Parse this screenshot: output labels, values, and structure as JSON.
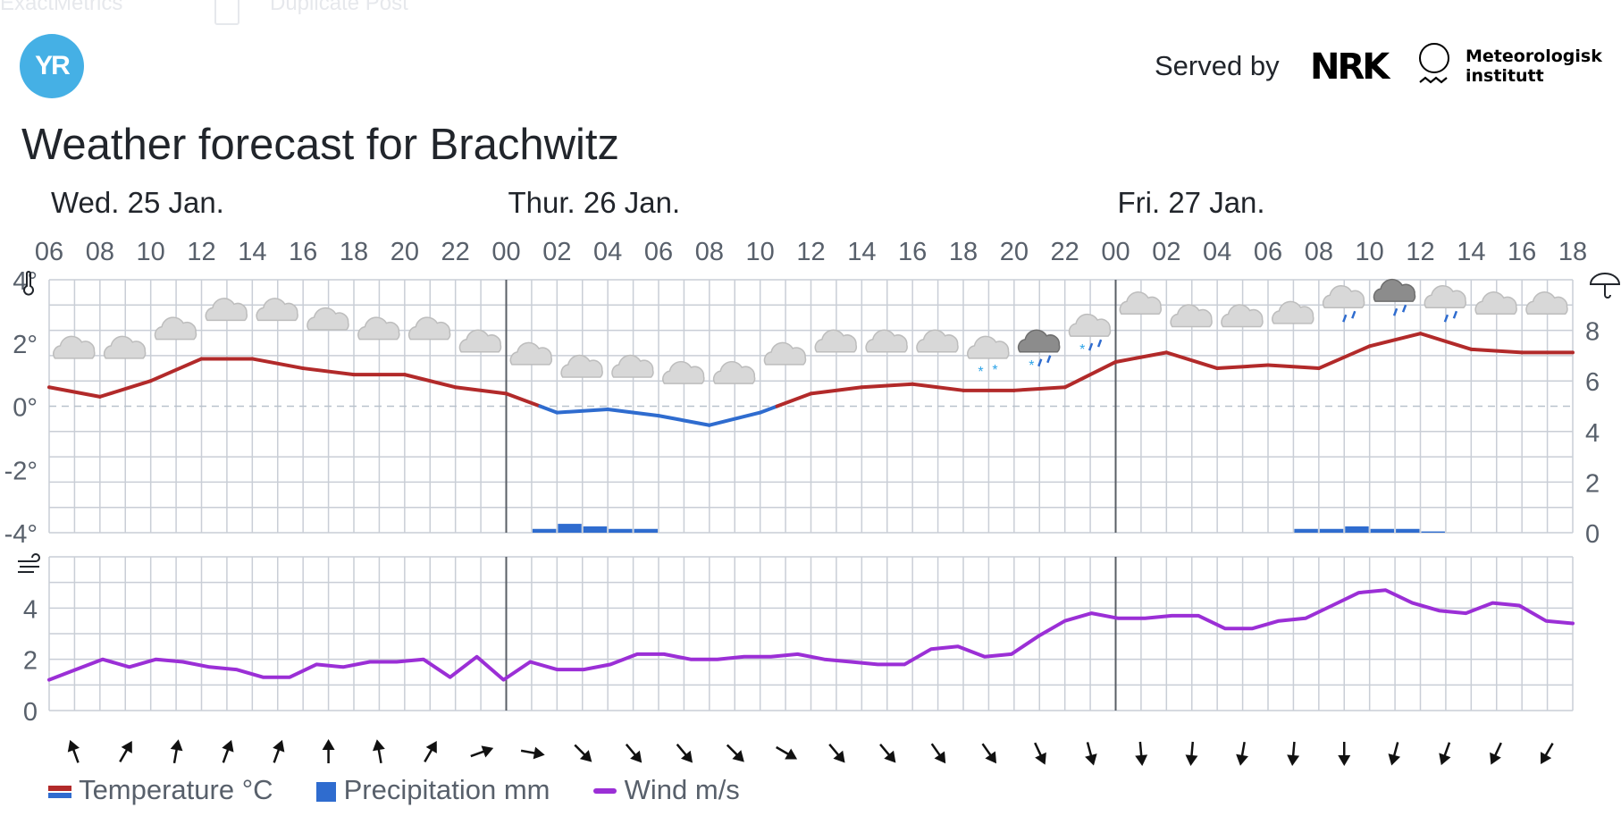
{
  "header": {
    "ghost_left": "ExactMetrics",
    "ghost_right": "Duplicate Post",
    "logo_text": "YR",
    "served_by": "Served by",
    "nrk_logo": "NRK",
    "met_line1": "Meteorologisk",
    "met_line2": "institutt",
    "title": "Weather forecast for Brachwitz"
  },
  "chart_data": {
    "type": "line",
    "days": [
      {
        "label": "Wed. 25 Jan.",
        "start_index": 0
      },
      {
        "label": "Thur. 26 Jan.",
        "start_index": 9
      },
      {
        "label": "Fri. 27 Jan.",
        "start_index": 21
      }
    ],
    "x_hours": [
      "06",
      "08",
      "10",
      "12",
      "14",
      "16",
      "18",
      "20",
      "22",
      "00",
      "02",
      "04",
      "06",
      "08",
      "10",
      "12",
      "14",
      "16",
      "18",
      "20",
      "22",
      "00",
      "02",
      "04",
      "06",
      "08",
      "10",
      "12",
      "14",
      "16",
      "18"
    ],
    "temperature": {
      "name": "Temperature °C",
      "unit": "°C",
      "y_ticks": [
        "4°",
        "2°",
        "0°",
        "-2°",
        "-4°"
      ],
      "ylim": [
        -4,
        4
      ],
      "values": [
        0.6,
        0.3,
        0.8,
        1.5,
        1.5,
        1.2,
        1.0,
        1.0,
        0.6,
        0.4,
        -0.2,
        -0.1,
        -0.3,
        -0.6,
        -0.2,
        0.4,
        0.6,
        0.7,
        0.5,
        0.5,
        0.6,
        1.4,
        1.7,
        1.2,
        1.3,
        1.2,
        1.9,
        2.3,
        1.8,
        1.7,
        1.7
      ],
      "color_above_zero": "#b22a2a",
      "color_below_zero": "#2f6ccf"
    },
    "precipitation": {
      "name": "Precipitation mm",
      "unit": "mm",
      "y_ticks": [
        "8",
        "6",
        "4",
        "2",
        "0"
      ],
      "ylim": [
        0,
        10
      ],
      "values": [
        0,
        0,
        0,
        0,
        0,
        0,
        0,
        0,
        0,
        0,
        0,
        0,
        0,
        0,
        0,
        0,
        0,
        0,
        0,
        0.15,
        0.35,
        0.25,
        0.15,
        0.15,
        0,
        0,
        0,
        0,
        0,
        0,
        0,
        0,
        0,
        0,
        0,
        0,
        0,
        0,
        0,
        0,
        0,
        0,
        0,
        0,
        0,
        0,
        0,
        0,
        0,
        0.15,
        0.15,
        0.25,
        0.15,
        0.15,
        0.05,
        0,
        0,
        0,
        0,
        0,
        0
      ],
      "color": "#2f6ccf"
    },
    "wind": {
      "name": "Wind m/s",
      "unit": "m/s",
      "y_ticks": [
        "4",
        "2",
        "0"
      ],
      "ylim": [
        0,
        6
      ],
      "values": [
        1.2,
        1.6,
        2.0,
        1.7,
        2.0,
        1.9,
        1.7,
        1.6,
        1.3,
        1.3,
        1.8,
        1.7,
        1.9,
        1.9,
        2.0,
        1.3,
        2.1,
        1.2,
        1.9,
        1.6,
        1.6,
        1.8,
        2.2,
        2.2,
        2.0,
        2.0,
        2.1,
        2.1,
        2.2,
        2.0,
        1.9,
        1.8,
        1.8,
        2.4,
        2.5,
        2.1,
        2.2,
        2.9,
        3.5,
        3.8,
        3.6,
        3.6,
        3.7,
        3.7,
        3.2,
        3.2,
        3.5,
        3.6,
        4.1,
        4.6,
        4.7,
        4.2,
        3.9,
        3.8,
        4.2,
        4.1,
        3.5,
        3.4
      ],
      "color": "#9b2fd6"
    },
    "wind_direction_deg": [
      -20,
      30,
      10,
      20,
      20,
      0,
      -10,
      30,
      70,
      100,
      135,
      140,
      140,
      135,
      120,
      140,
      140,
      145,
      145,
      155,
      165,
      175,
      185,
      190,
      185,
      180,
      195,
      200,
      205,
      210
    ],
    "weather_symbols": [
      {
        "icon": "cloudy-icon",
        "temp": 1.8
      },
      {
        "icon": "cloudy-icon",
        "temp": 1.8
      },
      {
        "icon": "cloudy-icon",
        "temp": 2.4
      },
      {
        "icon": "cloudy-icon",
        "temp": 3.0
      },
      {
        "icon": "cloudy-icon",
        "temp": 3.0
      },
      {
        "icon": "cloudy-icon",
        "temp": 2.7
      },
      {
        "icon": "cloudy-icon",
        "temp": 2.4
      },
      {
        "icon": "cloudy-icon",
        "temp": 2.4
      },
      {
        "icon": "cloudy-icon",
        "temp": 2.0
      },
      {
        "icon": "cloudy-icon",
        "temp": 1.6
      },
      {
        "icon": "cloudy-icon",
        "temp": 1.2
      },
      {
        "icon": "cloudy-icon",
        "temp": 1.2
      },
      {
        "icon": "cloudy-icon",
        "temp": 1.0
      },
      {
        "icon": "cloudy-icon",
        "temp": 1.0
      },
      {
        "icon": "cloudy-icon",
        "temp": 1.6
      },
      {
        "icon": "cloudy-icon",
        "temp": 2.0
      },
      {
        "icon": "cloudy-icon",
        "temp": 2.0
      },
      {
        "icon": "cloudy-icon",
        "temp": 2.0
      },
      {
        "icon": "snow-icon",
        "temp": 1.8
      },
      {
        "icon": "sleet-icon",
        "temp": 2.0
      },
      {
        "icon": "sleet-icon",
        "temp": 2.5
      },
      {
        "icon": "cloudy-icon",
        "temp": 3.2
      },
      {
        "icon": "cloudy-icon",
        "temp": 2.8
      },
      {
        "icon": "cloudy-icon",
        "temp": 2.8
      },
      {
        "icon": "cloudy-icon",
        "temp": 2.9
      },
      {
        "icon": "rain-icon",
        "temp": 3.4
      },
      {
        "icon": "rain-icon",
        "temp": 3.6
      },
      {
        "icon": "rain-icon",
        "temp": 3.4
      },
      {
        "icon": "cloudy-icon",
        "temp": 3.2
      },
      {
        "icon": "cloudy-icon",
        "temp": 3.2
      }
    ],
    "grid": true
  },
  "legend": {
    "temperature": "Temperature °C",
    "precipitation": "Precipitation mm",
    "wind": "Wind m/s"
  },
  "colors": {
    "grid": "#c9ced6",
    "day_separator": "#5a5f66",
    "axis_text": "#58606b",
    "logo": "#45b0e5"
  }
}
